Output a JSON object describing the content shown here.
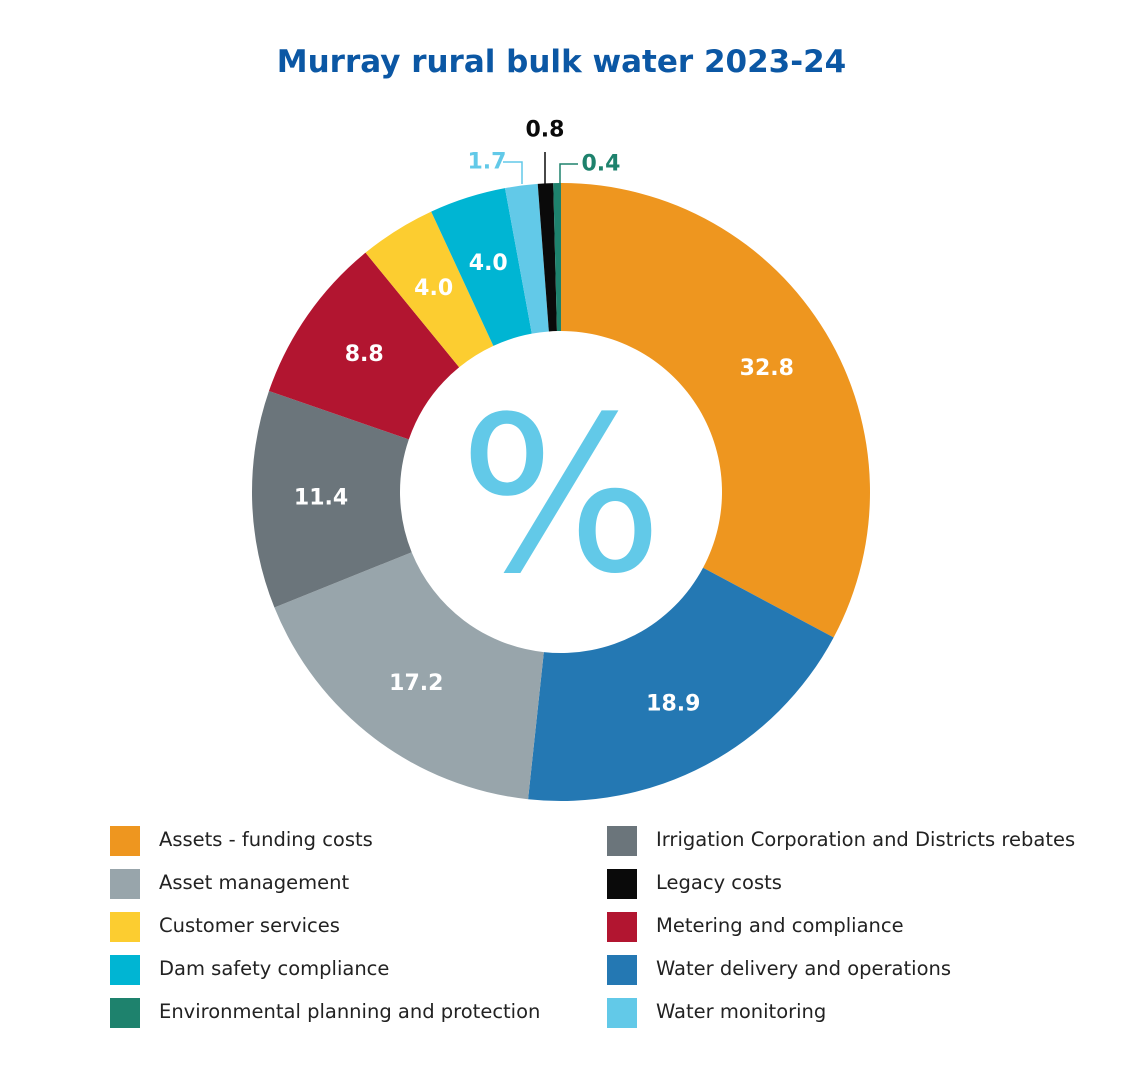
{
  "chart_data": {
    "type": "pie",
    "subtype": "donut",
    "title": "Murray rural bulk water 2023-24",
    "center_symbol": "%",
    "slices": [
      {
        "label": "Assets - funding costs",
        "value": 32.8,
        "display": "32.8",
        "color": "#ee961f",
        "label_color": "#ffffff"
      },
      {
        "label": "Water delivery and operations",
        "value": 18.9,
        "display": "18.9",
        "color": "#2478b3",
        "label_color": "#ffffff"
      },
      {
        "label": "Asset management",
        "value": 17.2,
        "display": "17.2",
        "color": "#98a5ab",
        "label_color": "#ffffff"
      },
      {
        "label": "Irrigation Corporation and Districts rebates",
        "value": 11.4,
        "display": "11.4",
        "color": "#6b757b",
        "label_color": "#ffffff"
      },
      {
        "label": "Metering and compliance",
        "value": 8.8,
        "display": "8.8",
        "color": "#b21530",
        "label_color": "#ffffff"
      },
      {
        "label": "Customer services",
        "value": 4.0,
        "display": "4.0",
        "color": "#fccd30",
        "label_color": "#ffffff"
      },
      {
        "label": "Dam safety compliance",
        "value": 4.0,
        "display": "4.0",
        "color": "#00b5d3",
        "label_color": "#ffffff"
      },
      {
        "label": "Water monitoring",
        "value": 1.7,
        "display": "1.7",
        "color": "#62c9e8",
        "label_color": "#62c9e8"
      },
      {
        "label": "Legacy costs",
        "value": 0.8,
        "display": "0.8",
        "color": "#0a0a0a",
        "label_color": "#0a0a0a"
      },
      {
        "label": "Environmental planning and protection",
        "value": 0.4,
        "display": "0.4",
        "color": "#1e826d",
        "label_color": "#1e826d"
      }
    ],
    "legend": {
      "position": "bottom",
      "left_column": [
        {
          "label": "Assets - funding costs",
          "color": "#ee961f"
        },
        {
          "label": "Asset management",
          "color": "#98a5ab"
        },
        {
          "label": "Customer services",
          "color": "#fccd30"
        },
        {
          "label": "Dam safety compliance",
          "color": "#00b5d3"
        },
        {
          "label": "Environmental planning and protection",
          "color": "#1e826d"
        }
      ],
      "right_column": [
        {
          "label": "Irrigation Corporation and Districts rebates",
          "color": "#6b757b"
        },
        {
          "label": "Legacy costs",
          "color": "#0a0a0a"
        },
        {
          "label": "Metering and compliance",
          "color": "#b21530"
        },
        {
          "label": "Water delivery and operations",
          "color": "#2478b3"
        },
        {
          "label": "Water monitoring",
          "color": "#62c9e8"
        }
      ]
    }
  },
  "colors": {
    "title": "#0b57a4",
    "center_symbol": "#62c9e8"
  }
}
